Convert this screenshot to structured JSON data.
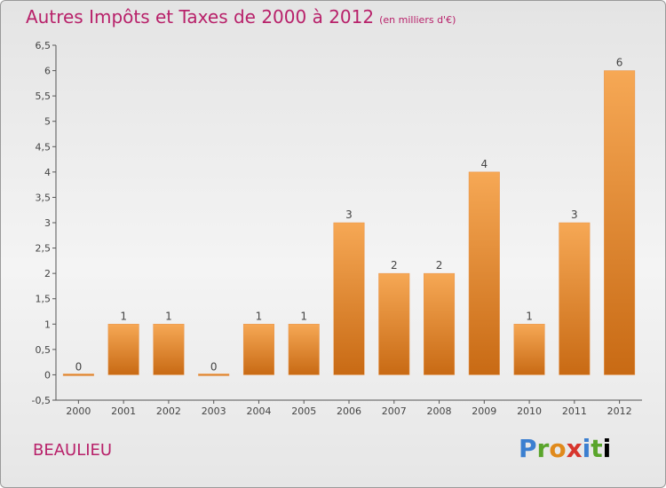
{
  "header": {
    "title": "Autres Impôts et Taxes de 2000 à 2012",
    "unit": "(en milliers d'€)"
  },
  "footer": {
    "commune": "BEAULIEU",
    "logo": "Proxiti"
  },
  "colors": {
    "title": "#b8216a",
    "bar_light": "#f6a855",
    "bar_dark": "#c86a14"
  },
  "chart_data": {
    "type": "bar",
    "title": "Autres Impôts et Taxes de 2000 à 2012",
    "subtitle": "(en milliers d'€)",
    "categories": [
      "2000",
      "2001",
      "2002",
      "2003",
      "2004",
      "2005",
      "2006",
      "2007",
      "2008",
      "2009",
      "2010",
      "2011",
      "2012"
    ],
    "values": [
      0,
      1,
      1,
      0,
      1,
      1,
      3,
      2,
      2,
      4,
      1,
      3,
      6
    ],
    "data_labels": [
      "0",
      "1",
      "1",
      "0",
      "1",
      "1",
      "3",
      "2",
      "2",
      "4",
      "1",
      "3",
      "6"
    ],
    "ylim": [
      -0.5,
      6.5
    ],
    "yticks": [
      "-0,5",
      "0",
      "0,5",
      "1",
      "1,5",
      "2",
      "2,5",
      "3",
      "3,5",
      "4",
      "4,5",
      "5",
      "5,5",
      "6",
      "6,5"
    ],
    "grid": false
  }
}
